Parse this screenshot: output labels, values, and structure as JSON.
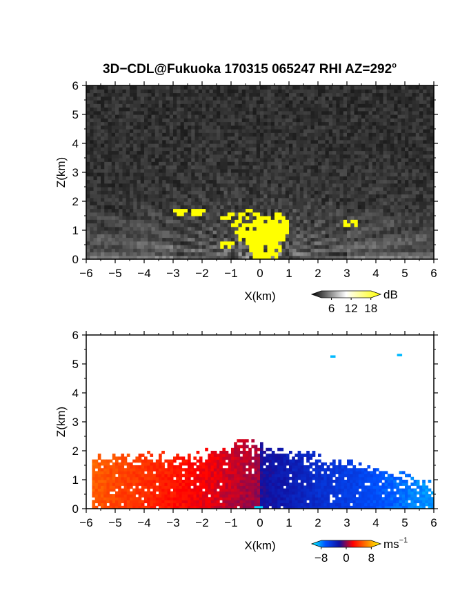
{
  "title": "3D−CDL@Fukuoka 170315 065247 RHI AZ=292",
  "title_degree": "o",
  "chart_data": [
    {
      "type": "heatmap",
      "panel": "top",
      "quantity": "backscatter intensity",
      "xlabel": "X(km)",
      "ylabel": "Z(km)",
      "xlim": [
        -6,
        6
      ],
      "ylim": [
        0,
        6
      ],
      "xticks": [
        -6,
        -5,
        -4,
        -3,
        -2,
        -1,
        0,
        1,
        2,
        3,
        4,
        5,
        6
      ],
      "yticks": [
        0,
        1,
        2,
        3,
        4,
        5,
        6
      ],
      "xtick_labels": [
        "−6",
        "−5",
        "−4",
        "−3",
        "−2",
        "−1",
        "0",
        "1",
        "2",
        "3",
        "4",
        "5",
        "6"
      ],
      "ytick_labels": [
        "0",
        "1",
        "2",
        "3",
        "4",
        "5",
        "6"
      ],
      "colorbar": {
        "unit": "dB",
        "ticks": [
          6,
          12,
          18
        ],
        "tick_labels": [
          "6",
          "12",
          "18"
        ],
        "range": [
          0,
          21
        ],
        "colors": [
          "#000000",
          "#ffffff",
          "#ffff00"
        ]
      },
      "highlight_regions": [
        {
          "x": -2.8,
          "z": 1.68,
          "value": 20
        },
        {
          "x": -2.1,
          "z": 1.62,
          "value": 20
        },
        {
          "x": -1.0,
          "z": 1.45,
          "value": 20
        },
        {
          "x": -0.4,
          "z": 1.15,
          "value": 20
        },
        {
          "x": 0.0,
          "z": 0.75,
          "value": 20
        },
        {
          "x": 0.5,
          "z": 1.05,
          "value": 20
        },
        {
          "x": -1.2,
          "z": 0.55,
          "value": 20
        },
        {
          "x": 0.2,
          "z": 0.35,
          "value": 20
        },
        {
          "x": 3.1,
          "z": 1.25,
          "value": 20
        }
      ]
    },
    {
      "type": "heatmap",
      "panel": "bottom",
      "quantity": "radial velocity",
      "xlabel": "X(km)",
      "ylabel": "Z(km)",
      "xlim": [
        -6,
        6
      ],
      "ylim": [
        0,
        6
      ],
      "xticks": [
        -6,
        -5,
        -4,
        -3,
        -2,
        -1,
        0,
        1,
        2,
        3,
        4,
        5,
        6
      ],
      "yticks": [
        0,
        1,
        2,
        3,
        4,
        5,
        6
      ],
      "xtick_labels": [
        "−6",
        "−5",
        "−4",
        "−3",
        "−2",
        "−1",
        "0",
        "1",
        "2",
        "3",
        "4",
        "5",
        "6"
      ],
      "ytick_labels": [
        "0",
        "1",
        "2",
        "3",
        "4",
        "5",
        "6"
      ],
      "colorbar": {
        "unit": "ms",
        "unit_exponent": "−1",
        "ticks": [
          -8,
          0,
          8
        ],
        "tick_labels": [
          "−8",
          "0",
          "8"
        ],
        "range": [
          -11,
          11
        ],
        "colors": [
          "#00ffff",
          "#0050ff",
          "#1010a0",
          "#ff0000",
          "#ff8000",
          "#ffff00"
        ]
      },
      "sample_values": [
        {
          "x": -5.5,
          "z": 1.7,
          "value": 8
        },
        {
          "x": -4.0,
          "z": 1.2,
          "value": 7
        },
        {
          "x": -3.0,
          "z": 0.8,
          "value": 5
        },
        {
          "x": -2.0,
          "z": 1.2,
          "value": 3
        },
        {
          "x": -1.0,
          "z": 1.0,
          "value": 1
        },
        {
          "x": -0.3,
          "z": 0.5,
          "value": 0
        },
        {
          "x": 0.5,
          "z": 1.0,
          "value": -2
        },
        {
          "x": 1.5,
          "z": 1.0,
          "value": -4
        },
        {
          "x": 2.5,
          "z": 1.0,
          "value": -5
        },
        {
          "x": 3.5,
          "z": 0.9,
          "value": -6
        },
        {
          "x": 4.5,
          "z": 0.8,
          "value": -7
        },
        {
          "x": 5.5,
          "z": 0.8,
          "value": -8
        },
        {
          "x": 2.5,
          "z": 5.25,
          "value": -9
        },
        {
          "x": 4.8,
          "z": 5.3,
          "value": -9
        }
      ]
    }
  ]
}
